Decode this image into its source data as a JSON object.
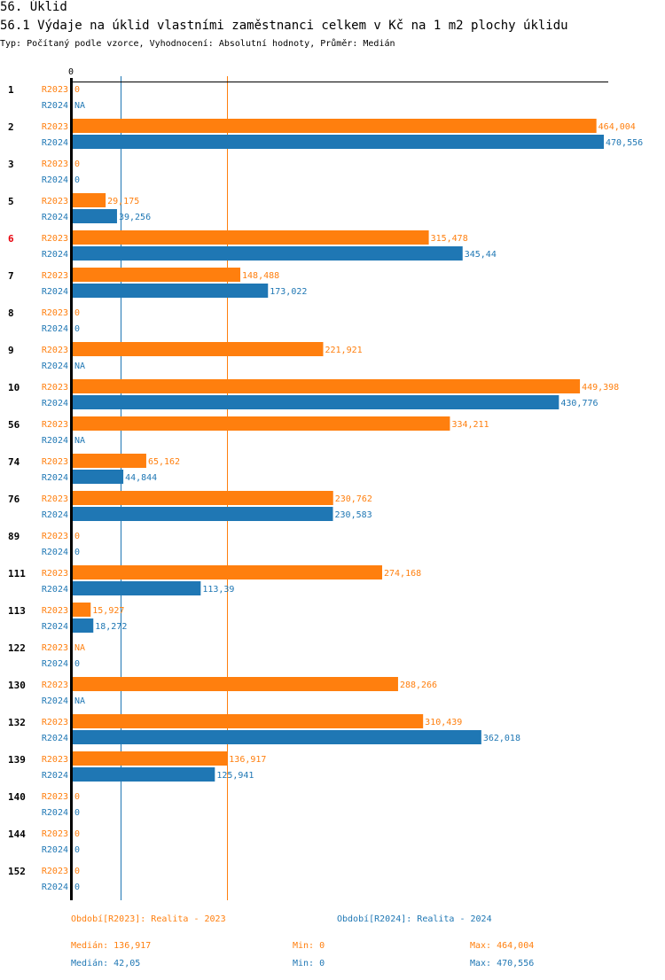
{
  "header": {
    "section_title": "56. Úklid",
    "chart_title": "56.1 Výdaje na úklid vlastními zaměstnanci celkem v Kč na 1 m2 plochy úklidu",
    "subtitle": "Typ: Počítaný podle vzorce, Vyhodnocení: Absolutní hodnoty, Průměr: Medián"
  },
  "colors": {
    "r2023": "#ff7f0e",
    "r2024": "#1f77b4",
    "highlight_category": "#e8000b",
    "axis": "#000000"
  },
  "chart_data": {
    "type": "bar",
    "orientation": "horizontal",
    "title": "56.1 Výdaje na úklid vlastními zaměstnanci celkem v Kč na 1 m2 plochy úklidu",
    "x_tick_labels": [
      "0"
    ],
    "xlim": [
      0,
      470556
    ],
    "grid": false,
    "categories": [
      "1",
      "2",
      "3",
      "5",
      "6",
      "7",
      "8",
      "9",
      "10",
      "56",
      "74",
      "76",
      "89",
      "111",
      "113",
      "122",
      "130",
      "132",
      "139",
      "140",
      "144",
      "152"
    ],
    "highlighted_category": "6",
    "series": [
      {
        "name": "R2023",
        "values": [
          0,
          464004,
          0,
          29175,
          315478,
          148488,
          0,
          221921,
          449398,
          334211,
          65162,
          230762,
          0,
          274168,
          15927,
          null,
          288266,
          310439,
          136917,
          0,
          0,
          0
        ],
        "labels": [
          "0",
          "464,004",
          "0",
          "29,175",
          "315,478",
          "148,488",
          "0",
          "221,921",
          "449,398",
          "334,211",
          "65,162",
          "230,762",
          "0",
          "274,168",
          "15,927",
          "NA",
          "288,266",
          "310,439",
          "136,917",
          "0",
          "0",
          "0"
        ],
        "median": 136917
      },
      {
        "name": "R2024",
        "values": [
          null,
          470556,
          0,
          39256,
          345440,
          173022,
          0,
          null,
          430776,
          null,
          44844,
          230583,
          0,
          113390,
          18272,
          0,
          null,
          362018,
          125941,
          0,
          0,
          0
        ],
        "labels": [
          "NA",
          "470,556",
          "0",
          "39,256",
          "345,44",
          "173,022",
          "0",
          "NA",
          "430,776",
          "NA",
          "44,844",
          "230,583",
          "0",
          "113,39",
          "18,272",
          "0",
          "NA",
          "362,018",
          "125,941",
          "0",
          "0",
          "0"
        ],
        "median": 42050
      }
    ]
  },
  "legend": {
    "r2023_label": "Období[R2023]: Realita - 2023",
    "r2024_label": "Období[R2024]: Realita - 2024"
  },
  "stats": {
    "r2023": {
      "median": "Medián: 136,917",
      "min": "Min: 0",
      "max": "Max: 464,004"
    },
    "r2024": {
      "median": "Medián: 42,05",
      "min": "Min: 0",
      "max": "Max: 470,556"
    }
  }
}
